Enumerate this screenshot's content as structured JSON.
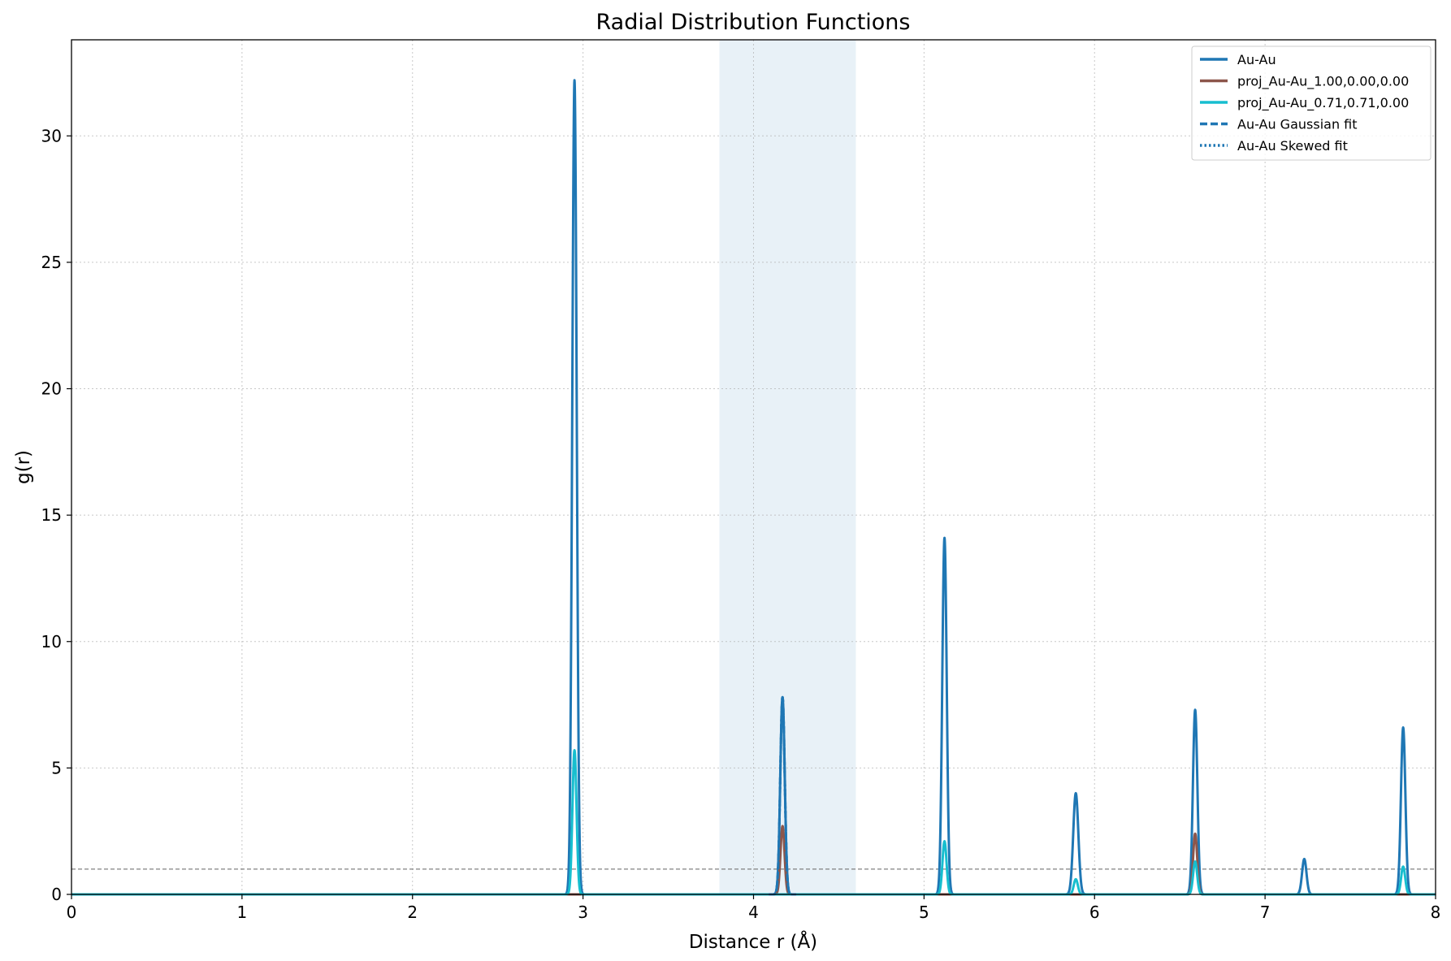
{
  "chart_data": {
    "type": "line",
    "title": "Radial Distribution Functions",
    "xlabel": "Distance r (Å)",
    "ylabel": "g(r)",
    "xlim": [
      0,
      8
    ],
    "ylim": [
      0,
      33.8
    ],
    "xticks": [
      0,
      1,
      2,
      3,
      4,
      5,
      6,
      7,
      8
    ],
    "yticks": [
      0,
      5,
      10,
      15,
      20,
      25,
      30
    ],
    "grid": true,
    "legend_position": "top-right",
    "reference_line": {
      "y": 1.0,
      "color": "#808080"
    },
    "highlight_region": {
      "x_start": 3.8,
      "x_end": 4.6,
      "color": "#1f77b4"
    },
    "series": [
      {
        "name": "Au-Au",
        "color": "#1f77b4",
        "style": "solid",
        "peaks": [
          {
            "x": 2.95,
            "y": 32.2,
            "width": 0.013
          },
          {
            "x": 4.17,
            "y": 7.8,
            "width": 0.013
          },
          {
            "x": 5.12,
            "y": 14.1,
            "width": 0.013
          },
          {
            "x": 5.89,
            "y": 4.0,
            "width": 0.015
          },
          {
            "x": 6.59,
            "y": 7.3,
            "width": 0.013
          },
          {
            "x": 7.23,
            "y": 1.4,
            "width": 0.013
          },
          {
            "x": 7.81,
            "y": 6.6,
            "width": 0.013
          }
        ]
      },
      {
        "name": "proj_Au-Au_1.00,0.00,0.00",
        "color": "#8c564b",
        "style": "solid",
        "peaks": [
          {
            "x": 4.17,
            "y": 2.7,
            "width": 0.012
          },
          {
            "x": 6.59,
            "y": 2.4,
            "width": 0.012
          }
        ]
      },
      {
        "name": "proj_Au-Au_0.71,0.71,0.00",
        "color": "#17becf",
        "style": "solid",
        "peaks": [
          {
            "x": 2.95,
            "y": 5.7,
            "width": 0.012
          },
          {
            "x": 5.12,
            "y": 2.1,
            "width": 0.012
          },
          {
            "x": 5.89,
            "y": 0.6,
            "width": 0.012
          },
          {
            "x": 6.59,
            "y": 1.3,
            "width": 0.012
          },
          {
            "x": 7.81,
            "y": 1.1,
            "width": 0.012
          }
        ]
      },
      {
        "name": "Au-Au Gaussian fit",
        "color": "#1f77b4",
        "style": "dashed",
        "peaks": [
          {
            "x": 4.17,
            "y": 7.8,
            "width": 0.013
          }
        ]
      },
      {
        "name": "Au-Au Skewed fit",
        "color": "#1f77b4",
        "style": "dotted",
        "peaks": [
          {
            "x": 4.17,
            "y": 7.8,
            "width": 0.013
          }
        ]
      }
    ]
  }
}
